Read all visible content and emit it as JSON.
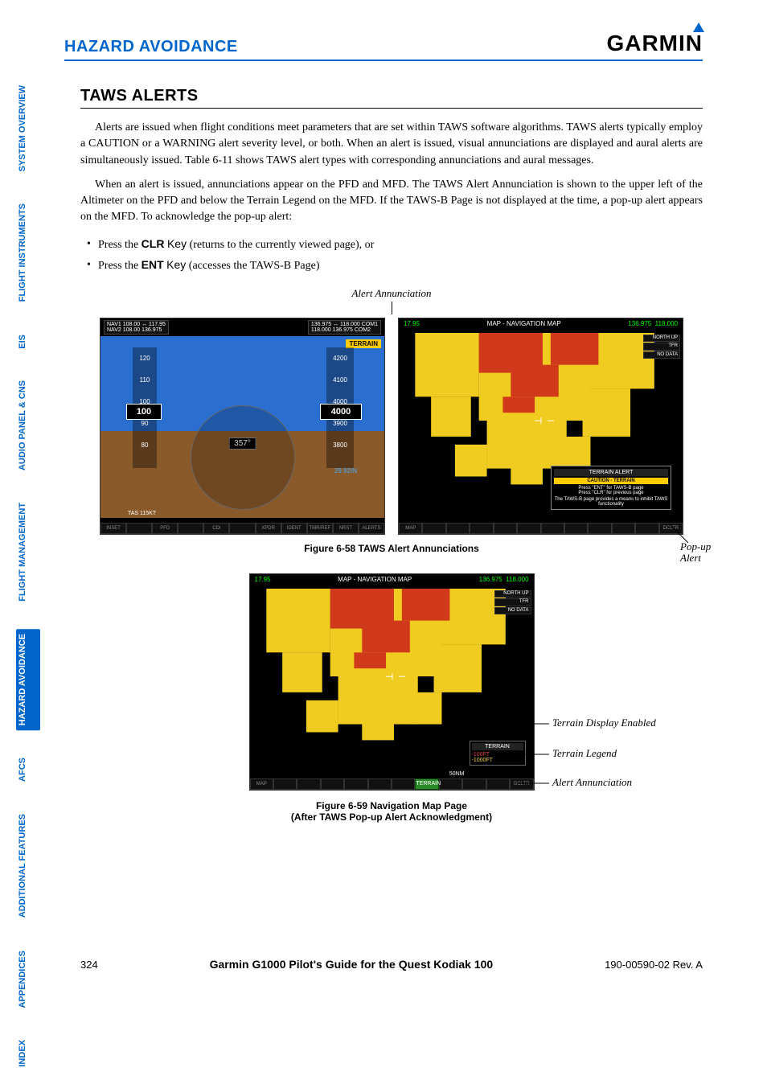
{
  "header": {
    "title": "HAZARD AVOIDANCE",
    "logo": "GARMIN"
  },
  "sidebar": {
    "tabs": [
      "SYSTEM OVERVIEW",
      "FLIGHT INSTRUMENTS",
      "EIS",
      "AUDIO PANEL & CNS",
      "FLIGHT MANAGEMENT",
      "HAZARD AVOIDANCE",
      "AFCS",
      "ADDITIONAL FEATURES",
      "APPENDICES",
      "INDEX"
    ],
    "active_index": 5
  },
  "section": {
    "title": "TAWS ALERTS",
    "para1": "Alerts are issued when flight conditions meet parameters that are set within TAWS software algorithms. TAWS alerts typically employ a CAUTION or a WARNING alert severity level, or both.  When an alert is issued, visual annunciations are displayed and aural alerts are simultaneously issued.  Table 6-11 shows TAWS alert types with corresponding annunciations and aural messages.",
    "para2": "When an alert is issued, annunciations appear on the PFD and MFD.  The TAWS Alert Annunciation is shown to the upper left of the Altimeter on the PFD and below the Terrain Legend on the MFD.  If the TAWS-B Page is not displayed at the time, a pop-up alert appears on the MFD.  To acknowledge the pop-up alert:",
    "bullets": [
      {
        "prefix": "Press the ",
        "key": "CLR",
        "key_word": "Key",
        "rest": " (returns to the currently viewed page), or"
      },
      {
        "prefix": "Press the ",
        "key": "ENT",
        "key_word": "Key",
        "rest": " (accesses the TAWS-B Page)"
      }
    ]
  },
  "callouts": {
    "top": "Alert Annunciation",
    "popup": "Pop-up Alert",
    "terrain_enabled": "Terrain Display Enabled",
    "terrain_legend": "Terrain Legend",
    "alert_annun": "Alert Annunciation"
  },
  "figures": {
    "f58": "Figure 6-58  TAWS Alert Annunciations",
    "f59_l1": "Figure 6-59  Navigation Map Page",
    "f59_l2": "(After TAWS Pop-up Alert Acknowledgment)"
  },
  "pfd": {
    "nav1": "NAV1 108.00 ↔ 117.95",
    "nav2": "NAV2 108.00   136.975",
    "com1": "136.975 ↔ 118.000 COM1",
    "com2": "118.000   136.975 COM2",
    "speed_scale": [
      "120",
      "110",
      "100",
      "90",
      "80"
    ],
    "speed_box": "100",
    "alt_scale": [
      "4200",
      "4100",
      "4000",
      "3900",
      "3800"
    ],
    "alt_box": "4000",
    "terrain_badge": "TERRAIN",
    "heading": "357°",
    "tas": "TAS 115KT",
    "baro": "29.92IN",
    "softkeys": [
      "INSET",
      "",
      "PFD",
      "",
      "CDI",
      "",
      "XPDR",
      "IDENT",
      "TMR/REF",
      "NRST",
      "ALERTS"
    ]
  },
  "mfd": {
    "left_freq": "17.95",
    "title": "MAP - NAVIGATION MAP",
    "right_freq1": "136.975",
    "right_freq2": "118.000",
    "ne_labels": [
      "NORTH UP",
      "TFR",
      "NO DATA"
    ],
    "popup_header": "TERRAIN ALERT",
    "popup_warn": "CAUTION - TERRAIN",
    "popup_text1": "Press \"ENT\" for TAWS-B page",
    "popup_text2": "Press \"CLR\" for previous page",
    "popup_text3": "The TAWS-B page provides a means to inhibit TAWS functionality",
    "legend_title": "TERRAIN",
    "legend_r": "-100FT",
    "legend_y": "-1000FT",
    "scale": "50NM",
    "terrain_btn": "TERRAIN",
    "softkeys": [
      "MAP",
      "",
      "",
      "",
      "",
      "",
      "",
      "",
      "",
      "",
      "",
      "DCLTR"
    ],
    "terrain_colors": {
      "warning": "#d03a1a",
      "caution": "#f0cc20",
      "background": "#000000"
    }
  },
  "footer": {
    "page": "324",
    "title": "Garmin G1000 Pilot's Guide for the Quest Kodiak 100",
    "rev": "190-00590-02 Rev. A"
  }
}
